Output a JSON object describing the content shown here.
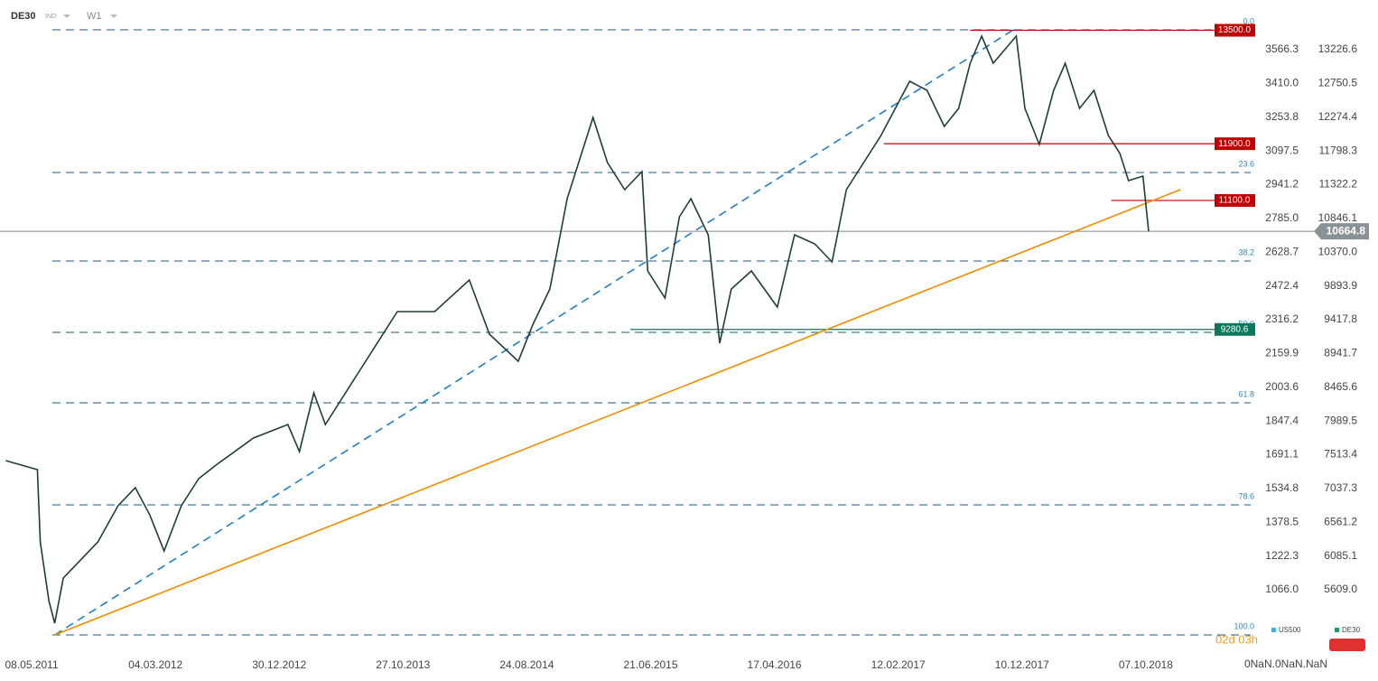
{
  "chart_data": {
    "type": "line",
    "symbol": "DE30",
    "market": "IND",
    "interval": "W1",
    "series": [
      {
        "name": "DE30",
        "color": "#1f3d37",
        "x": [
          "06.03.2011",
          "22.05.2011",
          "29.05.2011",
          "19.06.2011",
          "03.07.2011",
          "24.07.2011",
          "04.09.2011",
          "16.10.2011",
          "04.12.2011",
          "15.01.2012",
          "19.02.2012",
          "25.03.2012",
          "06.05.2012",
          "17.06.2012",
          "29.07.2012",
          "28.10.2012",
          "20.01.2013",
          "17.02.2013",
          "24.03.2013",
          "21.04.2013",
          "28.07.2013",
          "13.10.2013",
          "12.01.2014",
          "06.04.2014",
          "25.05.2014",
          "03.08.2014",
          "07.09.2014",
          "19.10.2014",
          "30.11.2014",
          "01.02.2015",
          "08.03.2015",
          "19.04.2015",
          "31.05.2015",
          "14.06.2015",
          "26.07.2015",
          "30.08.2015",
          "27.09.2015",
          "08.11.2015",
          "06.12.2015",
          "03.01.2016",
          "21.02.2016",
          "24.04.2016",
          "05.06.2016",
          "24.07.2016",
          "04.09.2016",
          "09.10.2016",
          "01.01.2017",
          "12.03.2017",
          "23.04.2017",
          "04.06.2017",
          "09.07.2017",
          "06.08.2017",
          "03.09.2017",
          "01.10.2017",
          "26.11.2017",
          "17.12.2017",
          "21.01.2018",
          "25.02.2018",
          "25.03.2018",
          "29.04.2018",
          "03.06.2018",
          "08.07.2018",
          "05.08.2018",
          "26.08.2018",
          "30.09.2018",
          "14.10.2018"
        ],
        "values": [
          7430,
          7303,
          6284,
          5450,
          5138,
          5775,
          6030,
          6284,
          6794,
          7049,
          6667,
          6157,
          6794,
          7176,
          7367,
          7749,
          7940,
          7558,
          8386,
          7940,
          8832,
          9533,
          9533,
          9978,
          9214,
          8832,
          9341,
          9851,
          11125,
          12271,
          11634,
          11252,
          11507,
          10106,
          9724,
          10870,
          11125,
          10615,
          9087,
          9851,
          10106,
          9596,
          10615,
          10488,
          10233,
          11252,
          12016,
          12781,
          12653,
          12144,
          12399,
          13036,
          13418,
          13036,
          13418,
          12399,
          11889,
          12653,
          13036,
          12399,
          12653,
          12016,
          11762,
          11380,
          11443,
          10665
        ]
      }
    ],
    "xlim": [
      "20.02.2011",
      "30.06.2019"
    ],
    "xticks": [
      "08.05.2011",
      "04.03.2012",
      "30.12.2012",
      "27.10.2013",
      "24.08.2014",
      "21.06.2015",
      "17.04.2016",
      "12.02.2017",
      "10.12.2017",
      "07.10.2018"
    ],
    "ylim": [
      4819.2,
      13927.2
    ],
    "yticks": [
      13226.6,
      12750.5,
      12274.4,
      11798.3,
      11322.2,
      {
        "value": 10846.1,
        "label": "10846.1"
      },
      {
        "value": 10370,
        "label": "10370.0"
      },
      9893.9,
      9417.8,
      8941.7,
      8465.6,
      7989.5,
      7513.4,
      7037.3,
      6561.2,
      6085.1,
      {
        "value": 5609,
        "label": "5609.0"
      }
    ],
    "y2lim": [
      806.8,
      3796.3
    ],
    "y2ticks": [
      3566.3,
      {
        "value": 3410,
        "label": "3410.0"
      },
      3253.8,
      3097.5,
      2941.2,
      {
        "value": 2785,
        "label": "2785.0"
      },
      2628.7,
      2472.4,
      2316.2,
      2159.9,
      2003.6,
      1847.4,
      1691.1,
      1534.8,
      1378.5,
      1222.3,
      {
        "value": 1066,
        "label": "1066.0"
      }
    ],
    "current_price": 10664.8,
    "fib_levels": [
      {
        "label": "0.0",
        "value": 13507
      },
      {
        "label": "23.6",
        "value": 11494
      },
      {
        "label": "38.2",
        "value": 10246
      },
      {
        "label": "50.0",
        "value": 9240
      },
      {
        "label": "61.8",
        "value": 8246
      },
      {
        "label": "78.6",
        "value": 6807
      },
      {
        "label": "100.0",
        "value": 4972
      }
    ],
    "price_levels": [
      {
        "value": 13500,
        "label": "13500.0",
        "color": "#c00000",
        "from": "06.08.2017"
      },
      {
        "value": 11900,
        "label": "11900.0",
        "color": "#c00000",
        "from": "08.01.2017"
      },
      {
        "value": 11100,
        "label": "11100.0",
        "color": "#c00000",
        "from": "15.07.2018"
      },
      {
        "value": 9280.6,
        "label": "9280.6",
        "color": "#0b7a5c",
        "from": "03.05.2015"
      }
    ],
    "trend_lines": [
      {
        "color": "#1f7fc0",
        "dashed": true,
        "x": [
          "03.07.2011",
          "19.11.2017"
        ],
        "values": [
          4972,
          13507
        ]
      },
      {
        "color": "#f08c00",
        "dashed": false,
        "x": [
          "03.07.2011",
          "30.12.2018"
        ],
        "values": [
          4972,
          11252
        ]
      }
    ],
    "legend": [
      {
        "name": "US500",
        "color": "#3fb5d8"
      },
      {
        "name": "DE30",
        "color": "#1e9a6a"
      }
    ],
    "timer": "02d 03h",
    "clock": "0NaN.0NaN.NaN"
  }
}
